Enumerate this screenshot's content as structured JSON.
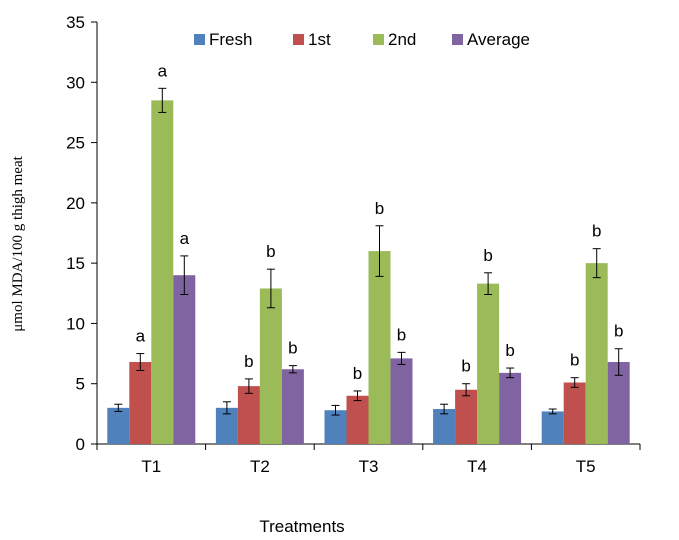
{
  "chart_data": {
    "type": "bar",
    "categories": [
      "T1",
      "T2",
      "T3",
      "T4",
      "T5"
    ],
    "series": [
      {
        "name": "Fresh",
        "color": "#4F81BD",
        "values": [
          3.0,
          3.0,
          2.8,
          2.9,
          2.7
        ],
        "errors": [
          0.3,
          0.5,
          0.4,
          0.4,
          0.2
        ],
        "labels": [
          "",
          "",
          "",
          "",
          ""
        ]
      },
      {
        "name": "1st",
        "color": "#C0504D",
        "values": [
          6.8,
          4.8,
          4.0,
          4.5,
          5.1
        ],
        "errors": [
          0.7,
          0.6,
          0.4,
          0.5,
          0.4
        ],
        "labels": [
          "a",
          "b",
          "b",
          "b",
          "b"
        ]
      },
      {
        "name": "2nd",
        "color": "#9BBB59",
        "values": [
          28.5,
          12.9,
          16.0,
          13.3,
          15.0
        ],
        "errors": [
          1.0,
          1.6,
          2.1,
          0.9,
          1.2
        ],
        "labels": [
          "a",
          "b",
          "b",
          "b",
          "b"
        ]
      },
      {
        "name": "Average",
        "color": "#8064A2",
        "values": [
          14.0,
          6.2,
          7.1,
          5.9,
          6.8
        ],
        "errors": [
          1.6,
          0.3,
          0.5,
          0.4,
          1.1
        ],
        "labels": [
          "a",
          "b",
          "b",
          "b",
          "b"
        ]
      }
    ],
    "ylabel": "μmol MDA/100 g thigh  meat",
    "xlabel": "Treatments",
    "ylim": [
      0,
      35
    ],
    "yticks": [
      0,
      5,
      10,
      15,
      20,
      25,
      30,
      35
    ],
    "grid": false,
    "legend_position": "top"
  }
}
